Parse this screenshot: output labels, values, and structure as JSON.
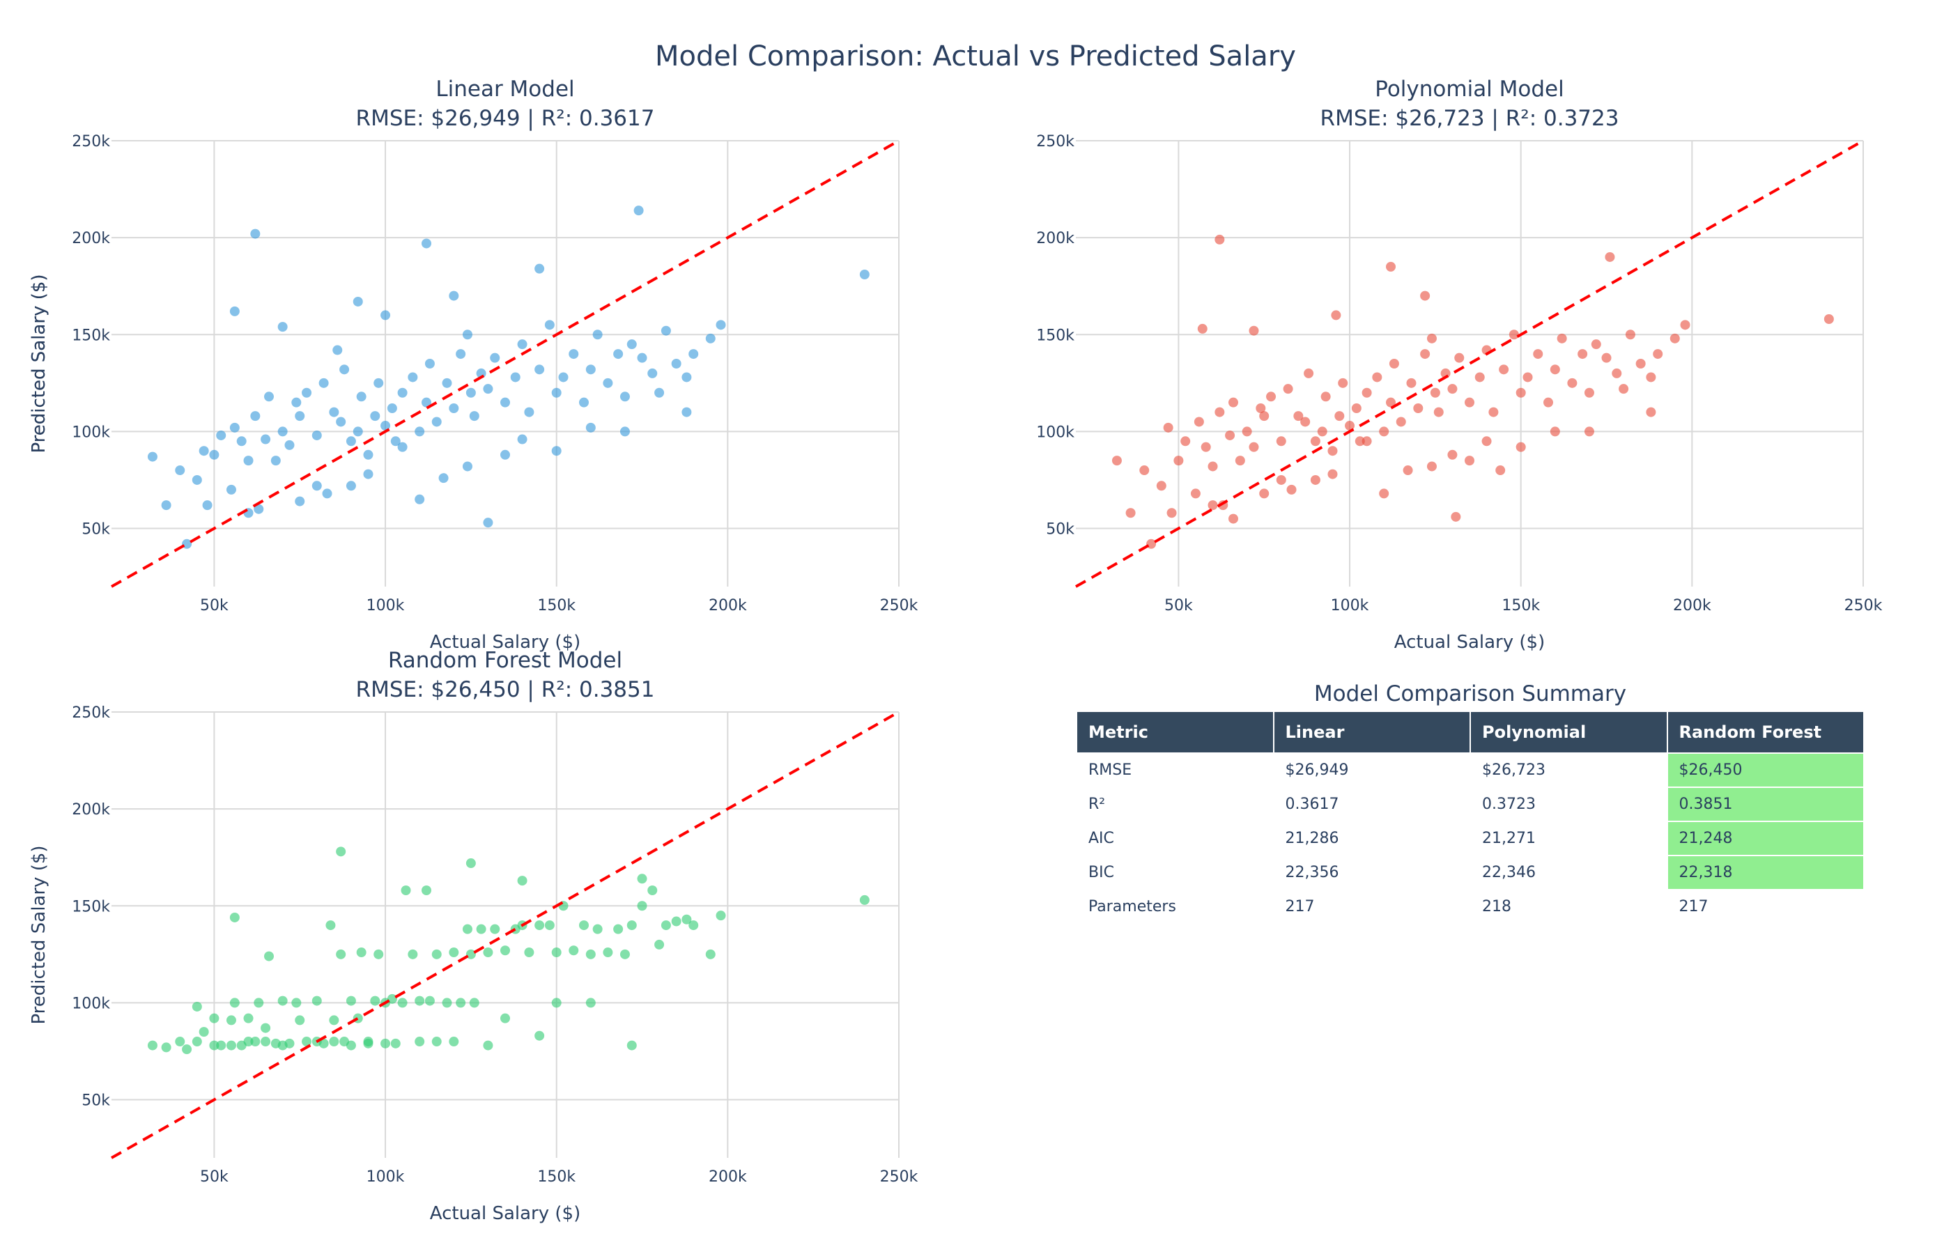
{
  "title": "Model Comparison: Actual vs Predicted Salary",
  "colors": {
    "linear": "#3498db",
    "polynomial": "#e74c3c",
    "random_forest": "#2ecc71",
    "reference_line": "#ff0000",
    "table_header_bg": "#34495e",
    "best_highlight": "#90ee90"
  },
  "chart_data": [
    {
      "type": "scatter",
      "title": "Linear Model",
      "subtitle": "RMSE: $26,949 | R²: 0.3617",
      "xlabel": "Actual Salary ($)",
      "ylabel": "Predicted Salary ($)",
      "xlim": [
        20000,
        250000
      ],
      "ylim": [
        20000,
        250000
      ],
      "x_ticks": [
        50000,
        100000,
        150000,
        200000,
        250000
      ],
      "x_tick_labels": [
        "50k",
        "100k",
        "150k",
        "200k",
        "250k"
      ],
      "y_ticks": [
        50000,
        100000,
        150000,
        200000,
        250000
      ],
      "y_tick_labels": [
        "50k",
        "100k",
        "150k",
        "200k",
        "250k"
      ],
      "grid": true,
      "reference_line": "y = x (dashed)",
      "series": [
        {
          "x": [
            32000,
            36000,
            40000,
            42000,
            45000,
            47000,
            50000,
            52000,
            55000,
            56000,
            58000,
            60000,
            62000,
            63000,
            65000,
            66000,
            68000,
            70000,
            72000,
            74000,
            75000,
            77000,
            80000,
            82000,
            85000,
            87000,
            88000,
            90000,
            92000,
            93000,
            95000,
            97000,
            98000,
            100000,
            102000,
            103000,
            105000,
            108000,
            110000,
            112000,
            113000,
            115000,
            118000,
            120000,
            122000,
            124000,
            125000,
            126000,
            128000,
            130000,
            132000,
            135000,
            138000,
            140000,
            142000,
            145000,
            148000,
            150000,
            152000,
            155000,
            158000,
            160000,
            162000,
            165000,
            168000,
            170000,
            172000,
            175000,
            178000,
            180000,
            182000,
            185000,
            188000,
            190000,
            195000,
            198000,
            240000,
            62000,
            112000,
            174000,
            56000,
            92000,
            145000,
            120000,
            70000,
            86000,
            100000,
            48000,
            60000,
            80000,
            95000,
            110000,
            130000,
            150000,
            170000,
            188000,
            105000,
            135000,
            160000,
            75000,
            83000,
            117000,
            124000,
            140000,
            90000
          ],
          "y": [
            87000,
            62000,
            80000,
            42000,
            75000,
            90000,
            88000,
            98000,
            70000,
            102000,
            95000,
            85000,
            108000,
            60000,
            96000,
            118000,
            85000,
            100000,
            93000,
            115000,
            108000,
            120000,
            98000,
            125000,
            110000,
            105000,
            132000,
            95000,
            100000,
            118000,
            88000,
            108000,
            125000,
            103000,
            112000,
            95000,
            120000,
            128000,
            100000,
            115000,
            135000,
            105000,
            125000,
            112000,
            140000,
            150000,
            120000,
            108000,
            130000,
            122000,
            138000,
            115000,
            128000,
            145000,
            110000,
            132000,
            155000,
            120000,
            128000,
            140000,
            115000,
            132000,
            150000,
            125000,
            140000,
            118000,
            145000,
            138000,
            130000,
            120000,
            152000,
            135000,
            128000,
            140000,
            148000,
            155000,
            181000,
            202000,
            197000,
            214000,
            162000,
            167000,
            184000,
            170000,
            154000,
            142000,
            160000,
            62000,
            58000,
            72000,
            78000,
            65000,
            53000,
            90000,
            100000,
            110000,
            92000,
            88000,
            102000,
            64000,
            68000,
            76000,
            82000,
            96000,
            72000
          ]
        }
      ]
    },
    {
      "type": "scatter",
      "title": "Polynomial Model",
      "subtitle": "RMSE: $26,723 | R²: 0.3723",
      "xlabel": "Actual Salary ($)",
      "ylabel": "Predicted Salary ($)",
      "xlim": [
        20000,
        250000
      ],
      "ylim": [
        20000,
        250000
      ],
      "x_ticks": [
        50000,
        100000,
        150000,
        200000,
        250000
      ],
      "x_tick_labels": [
        "50k",
        "100k",
        "150k",
        "200k",
        "250k"
      ],
      "y_ticks": [
        50000,
        100000,
        150000,
        200000,
        250000
      ],
      "y_tick_labels": [
        "50k",
        "100k",
        "150k",
        "200k",
        "250k"
      ],
      "grid": true,
      "reference_line": "y = x (dashed)",
      "series": [
        {
          "x": [
            32000,
            36000,
            40000,
            42000,
            45000,
            47000,
            50000,
            52000,
            55000,
            56000,
            58000,
            60000,
            62000,
            63000,
            65000,
            66000,
            68000,
            70000,
            72000,
            74000,
            75000,
            77000,
            80000,
            82000,
            85000,
            87000,
            88000,
            90000,
            92000,
            93000,
            95000,
            97000,
            98000,
            100000,
            102000,
            103000,
            105000,
            108000,
            110000,
            112000,
            113000,
            115000,
            118000,
            120000,
            122000,
            124000,
            125000,
            126000,
            128000,
            130000,
            132000,
            135000,
            138000,
            140000,
            142000,
            145000,
            148000,
            150000,
            152000,
            155000,
            158000,
            160000,
            162000,
            165000,
            168000,
            170000,
            172000,
            175000,
            178000,
            180000,
            182000,
            185000,
            188000,
            190000,
            195000,
            198000,
            240000,
            62000,
            112000,
            176000,
            57000,
            96000,
            122000,
            72000,
            131000,
            48000,
            60000,
            80000,
            95000,
            110000,
            130000,
            150000,
            170000,
            188000,
            105000,
            135000,
            160000,
            75000,
            83000,
            117000,
            124000,
            140000,
            90000,
            66000,
            144000
          ],
          "y": [
            85000,
            58000,
            80000,
            42000,
            72000,
            102000,
            85000,
            95000,
            68000,
            105000,
            92000,
            82000,
            110000,
            62000,
            98000,
            115000,
            85000,
            100000,
            92000,
            112000,
            108000,
            118000,
            95000,
            122000,
            108000,
            105000,
            130000,
            95000,
            100000,
            118000,
            90000,
            108000,
            125000,
            103000,
            112000,
            95000,
            120000,
            128000,
            100000,
            115000,
            135000,
            105000,
            125000,
            112000,
            140000,
            148000,
            120000,
            110000,
            130000,
            122000,
            138000,
            115000,
            128000,
            142000,
            110000,
            132000,
            150000,
            120000,
            128000,
            140000,
            115000,
            132000,
            148000,
            125000,
            140000,
            120000,
            145000,
            138000,
            130000,
            122000,
            150000,
            135000,
            128000,
            140000,
            148000,
            155000,
            158000,
            199000,
            185000,
            190000,
            153000,
            160000,
            170000,
            152000,
            56000,
            58000,
            62000,
            75000,
            78000,
            68000,
            88000,
            92000,
            100000,
            110000,
            95000,
            85000,
            100000,
            68000,
            70000,
            80000,
            82000,
            95000,
            75000,
            55000,
            80000
          ]
        }
      ]
    },
    {
      "type": "scatter",
      "title": "Random Forest Model",
      "subtitle": "RMSE: $26,450 | R²: 0.3851",
      "xlabel": "Actual Salary ($)",
      "ylabel": "Predicted Salary ($)",
      "xlim": [
        20000,
        250000
      ],
      "ylim": [
        20000,
        250000
      ],
      "x_ticks": [
        50000,
        100000,
        150000,
        200000,
        250000
      ],
      "x_tick_labels": [
        "50k",
        "100k",
        "150k",
        "200k",
        "250k"
      ],
      "y_ticks": [
        50000,
        100000,
        150000,
        200000,
        250000
      ],
      "y_tick_labels": [
        "50k",
        "100k",
        "150k",
        "200k",
        "250k"
      ],
      "grid": true,
      "reference_line": "y = x (dashed)",
      "series": [
        {
          "x": [
            32000,
            36000,
            40000,
            42000,
            45000,
            47000,
            50000,
            52000,
            55000,
            56000,
            58000,
            60000,
            62000,
            63000,
            65000,
            66000,
            68000,
            70000,
            72000,
            74000,
            75000,
            77000,
            80000,
            82000,
            85000,
            87000,
            88000,
            90000,
            92000,
            93000,
            95000,
            97000,
            98000,
            100000,
            102000,
            103000,
            105000,
            108000,
            110000,
            112000,
            113000,
            115000,
            118000,
            120000,
            122000,
            124000,
            125000,
            126000,
            128000,
            130000,
            132000,
            135000,
            138000,
            140000,
            142000,
            145000,
            148000,
            150000,
            152000,
            155000,
            158000,
            160000,
            162000,
            165000,
            168000,
            170000,
            172000,
            175000,
            178000,
            180000,
            182000,
            185000,
            188000,
            190000,
            195000,
            198000,
            240000,
            87000,
            125000,
            56000,
            140000,
            175000,
            50000,
            60000,
            70000,
            80000,
            90000,
            100000,
            110000,
            120000,
            130000,
            150000,
            45000,
            55000,
            65000,
            85000,
            95000,
            115000,
            135000,
            145000,
            160000,
            172000,
            106000,
            84000
          ],
          "y": [
            78000,
            77000,
            80000,
            76000,
            98000,
            85000,
            92000,
            78000,
            91000,
            100000,
            78000,
            92000,
            80000,
            100000,
            87000,
            124000,
            79000,
            101000,
            79000,
            100000,
            91000,
            80000,
            101000,
            79000,
            91000,
            125000,
            80000,
            101000,
            92000,
            126000,
            80000,
            101000,
            125000,
            100000,
            102000,
            79000,
            100000,
            125000,
            101000,
            158000,
            101000,
            125000,
            100000,
            126000,
            100000,
            138000,
            125000,
            100000,
            138000,
            126000,
            138000,
            127000,
            138000,
            140000,
            126000,
            140000,
            140000,
            126000,
            150000,
            127000,
            140000,
            125000,
            138000,
            126000,
            138000,
            125000,
            140000,
            150000,
            158000,
            130000,
            140000,
            142000,
            143000,
            140000,
            125000,
            145000,
            153000,
            178000,
            172000,
            144000,
            163000,
            164000,
            78000,
            80000,
            78000,
            80000,
            78000,
            79000,
            80000,
            80000,
            78000,
            100000,
            80000,
            78000,
            80000,
            80000,
            79000,
            80000,
            92000,
            83000,
            100000,
            78000,
            158000,
            140000
          ]
        }
      ]
    }
  ],
  "summary_table": {
    "title": "Model Comparison Summary",
    "headers": [
      "Metric",
      "Linear",
      "Polynomial",
      "Random Forest"
    ],
    "best_column": 3,
    "highlight_rows": [
      0,
      1,
      2,
      3
    ],
    "rows": [
      [
        "RMSE",
        "$26,949",
        "$26,723",
        "$26,450"
      ],
      [
        "R²",
        "0.3617",
        "0.3723",
        "0.3851"
      ],
      [
        "AIC",
        "21,286",
        "21,271",
        "21,248"
      ],
      [
        "BIC",
        "22,356",
        "22,346",
        "22,318"
      ],
      [
        "Parameters",
        "217",
        "218",
        "217"
      ]
    ]
  }
}
